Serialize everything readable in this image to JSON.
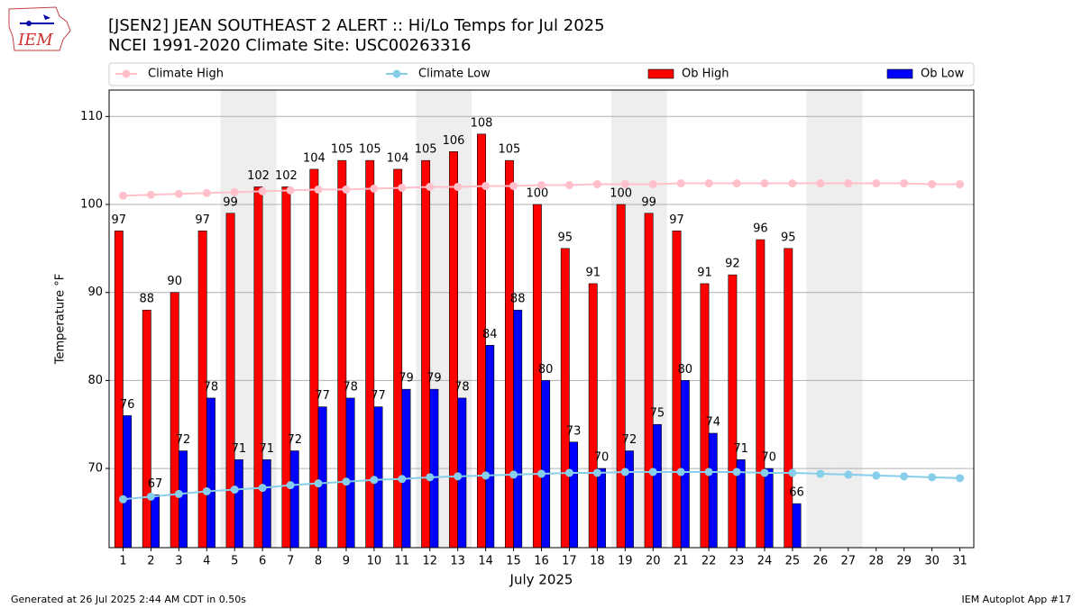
{
  "chart_data": {
    "type": "bar_line",
    "logo_text": "IEM",
    "title": "[JSEN2] JEAN SOUTHEAST 2 ALERT :: Hi/Lo Temps for Jul 2025",
    "subtitle": "NCEI 1991-2020 Climate Site: USC00263316",
    "y_label": "Temperature °F",
    "x_label": "July 2025",
    "footer_left": "Generated at 26 Jul 2025 2:44 AM CDT in 0.50s",
    "footer_right": "IEM Autoplot App #17",
    "x": [
      1,
      2,
      3,
      4,
      5,
      6,
      7,
      8,
      9,
      10,
      11,
      12,
      13,
      14,
      15,
      16,
      17,
      18,
      19,
      20,
      21,
      22,
      23,
      24,
      25,
      26,
      27,
      28,
      29,
      30,
      31
    ],
    "xlim": [
      0.5,
      31.5
    ],
    "xticks": [
      1,
      2,
      3,
      4,
      5,
      6,
      7,
      8,
      9,
      10,
      11,
      12,
      13,
      14,
      15,
      16,
      17,
      18,
      19,
      20,
      21,
      22,
      23,
      24,
      25,
      26,
      27,
      28,
      29,
      30,
      31
    ],
    "ylim": [
      61,
      113
    ],
    "yticks": [
      70,
      80,
      90,
      100,
      110
    ],
    "grid": true,
    "shaded_days": [
      5,
      6,
      12,
      13,
      19,
      20,
      26,
      27
    ],
    "shade_color": "#eeeeee",
    "series": [
      {
        "name": "Climate High",
        "kind": "line",
        "color": "#ffc0cb",
        "values": [
          101,
          101.1,
          101.2,
          101.3,
          101.4,
          101.5,
          101.6,
          101.7,
          101.7,
          101.8,
          101.9,
          102,
          102,
          102.1,
          102.1,
          102.2,
          102.2,
          102.3,
          102.3,
          102.3,
          102.4,
          102.4,
          102.4,
          102.4,
          102.4,
          102.4,
          102.4,
          102.4,
          102.4,
          102.3,
          102.3
        ]
      },
      {
        "name": "Climate Low",
        "kind": "line",
        "color": "#87ceeb",
        "values": [
          66.5,
          66.8,
          67.1,
          67.4,
          67.6,
          67.8,
          68.1,
          68.3,
          68.5,
          68.7,
          68.8,
          69,
          69.1,
          69.2,
          69.3,
          69.4,
          69.5,
          69.5,
          69.6,
          69.6,
          69.6,
          69.6,
          69.6,
          69.5,
          69.5,
          69.4,
          69.3,
          69.2,
          69.1,
          69.0,
          68.9
        ]
      },
      {
        "name": "Ob High",
        "kind": "bar",
        "color": "#ff0000",
        "values": [
          97,
          88,
          90,
          97,
          99,
          102,
          102,
          104,
          105,
          105,
          104,
          105,
          106,
          108,
          105,
          100,
          95,
          91,
          100,
          99,
          97,
          91,
          92,
          96,
          95,
          null,
          null,
          null,
          null,
          null,
          null
        ]
      },
      {
        "name": "Ob Low",
        "kind": "bar",
        "color": "#0000ff",
        "values": [
          76,
          67,
          72,
          78,
          71,
          71,
          72,
          77,
          78,
          77,
          79,
          79,
          78,
          84,
          88,
          80,
          73,
          70,
          72,
          75,
          80,
          74,
          71,
          70,
          66,
          null,
          null,
          null,
          null,
          null,
          null
        ]
      }
    ]
  }
}
